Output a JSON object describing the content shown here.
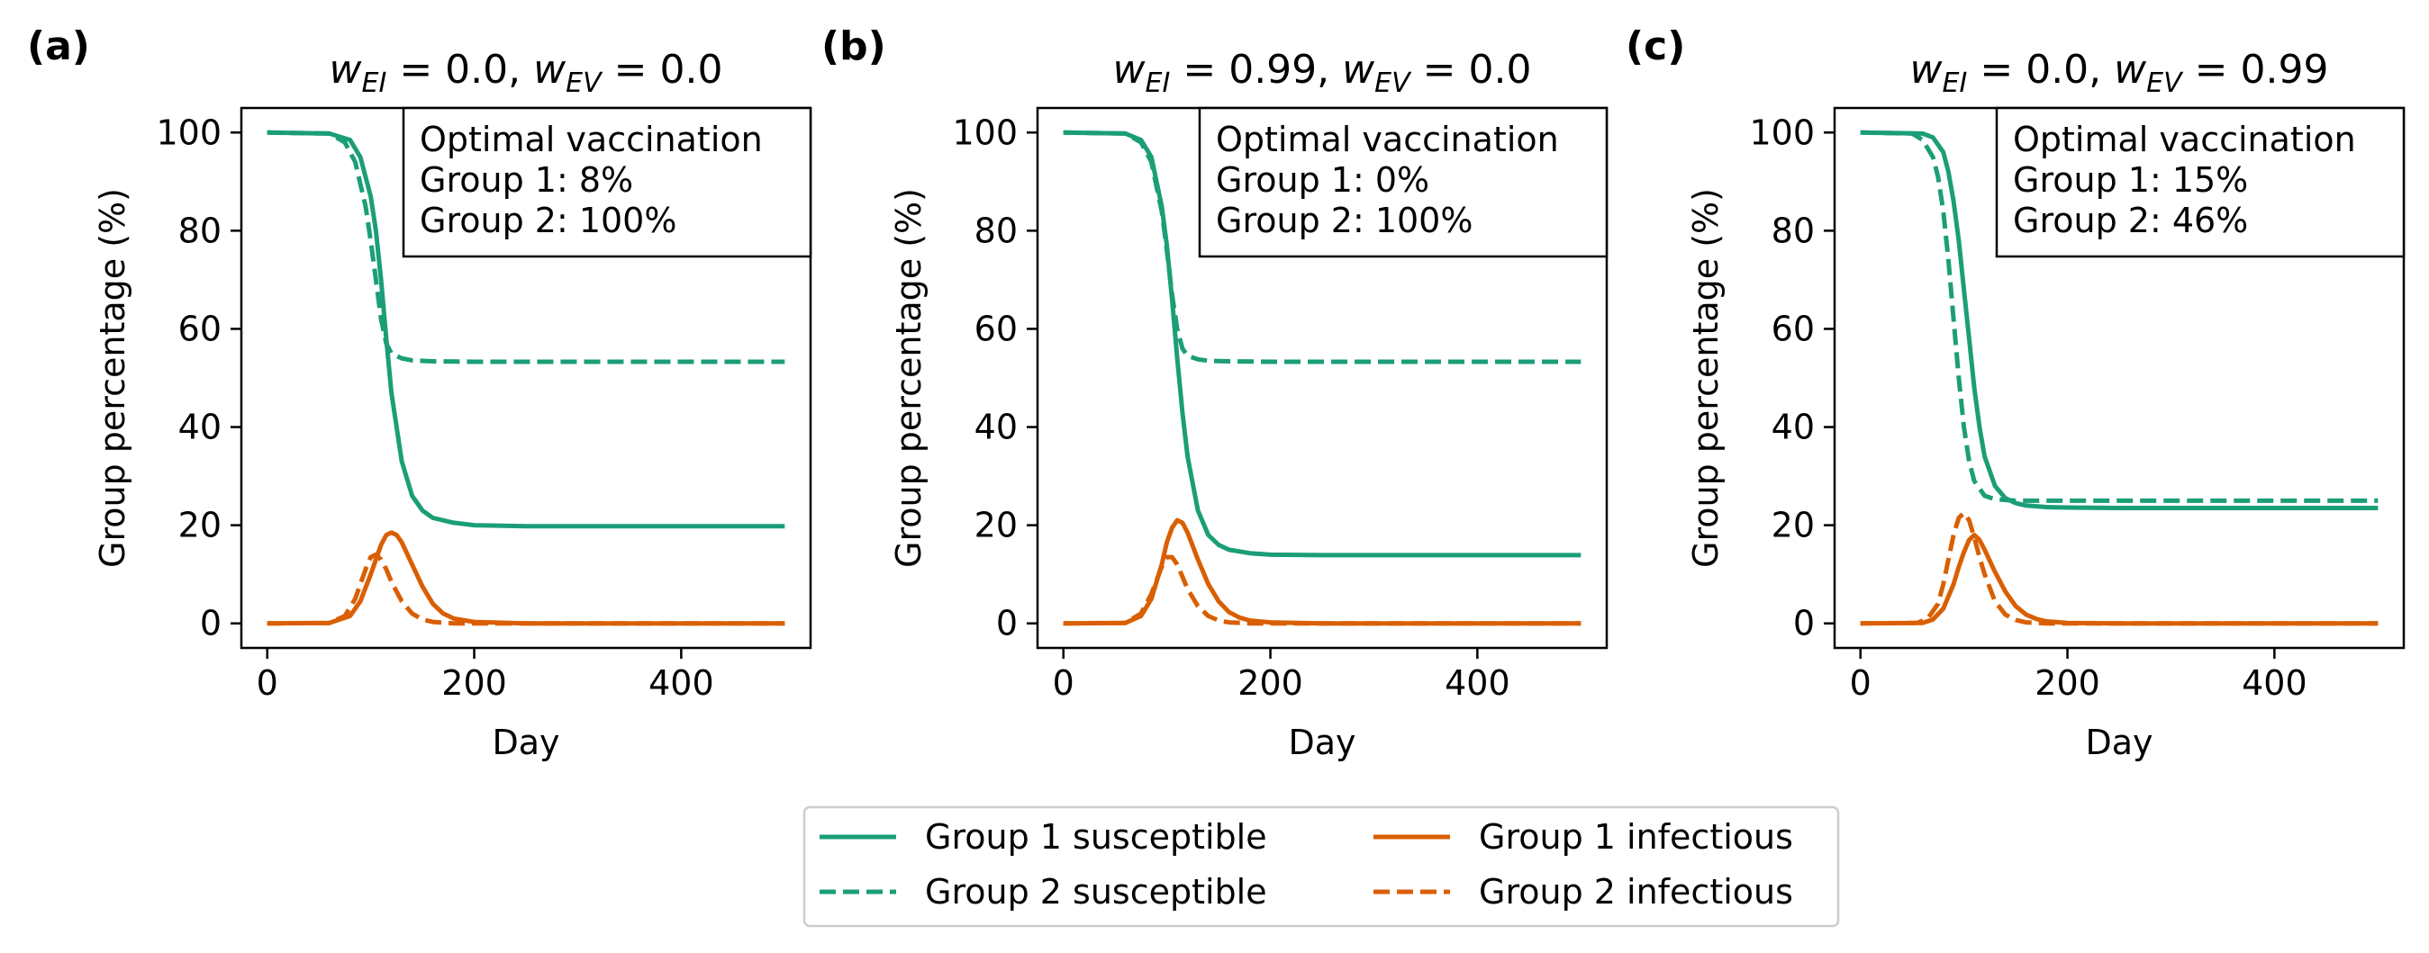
{
  "colors": {
    "susceptible": "#1b9e77",
    "infectious": "#d95f02"
  },
  "legend": {
    "entries": [
      {
        "label": "Group 1 susceptible",
        "series": "g1_susceptible"
      },
      {
        "label": "Group 2 susceptible",
        "series": "g2_susceptible"
      },
      {
        "label": "Group 1 infectious",
        "series": "g1_infectious"
      },
      {
        "label": "Group 2 infectious",
        "series": "g2_infectious"
      }
    ]
  },
  "chart_data": [
    {
      "type": "line",
      "panel_label": "(a)",
      "title": {
        "w_EI": "0.0",
        "w_EV": "0.0"
      },
      "xlabel": "Day",
      "ylabel": "Group percentage (%)",
      "xlim": [
        -25,
        525
      ],
      "ylim": [
        -5,
        105
      ],
      "xticks": [
        0,
        200,
        400
      ],
      "yticks": [
        0,
        20,
        40,
        60,
        80,
        100
      ],
      "annotation": [
        "Optimal vaccination",
        "Group 1: 8%",
        "Group 2: 100%"
      ],
      "series": [
        {
          "key": "g1_susceptible",
          "name": "Group 1 susceptible",
          "style": "solid",
          "x": [
            0,
            60,
            80,
            90,
            100,
            105,
            110,
            115,
            120,
            130,
            140,
            150,
            160,
            180,
            200,
            250,
            300,
            400,
            500
          ],
          "y": [
            100,
            99.8,
            98.5,
            95,
            87,
            80,
            70,
            58,
            47,
            33,
            26,
            23,
            21.5,
            20.5,
            20,
            19.8,
            19.8,
            19.8,
            19.8
          ]
        },
        {
          "key": "g2_susceptible",
          "name": "Group 2 susceptible",
          "style": "dashed",
          "x": [
            0,
            60,
            75,
            85,
            95,
            100,
            105,
            110,
            115,
            120,
            130,
            140,
            160,
            200,
            300,
            400,
            500
          ],
          "y": [
            100,
            99.8,
            98,
            94,
            85,
            78,
            70,
            62,
            57,
            55,
            54,
            53.6,
            53.4,
            53.3,
            53.3,
            53.3,
            53.3
          ]
        },
        {
          "key": "g1_infectious",
          "name": "Group 1 infectious",
          "style": "solid",
          "x": [
            0,
            60,
            80,
            90,
            100,
            110,
            115,
            120,
            125,
            130,
            140,
            150,
            160,
            170,
            180,
            200,
            250,
            300,
            400,
            500
          ],
          "y": [
            0,
            0.1,
            1.5,
            4.5,
            10,
            16,
            18,
            18.5,
            18,
            16.5,
            12,
            7.5,
            4,
            2,
            1,
            0.3,
            0,
            0,
            0,
            0
          ]
        },
        {
          "key": "g2_infectious",
          "name": "Group 2 infectious",
          "style": "dashed",
          "x": [
            0,
            60,
            75,
            85,
            95,
            100,
            105,
            110,
            115,
            120,
            130,
            140,
            150,
            160,
            180,
            200,
            300,
            500
          ],
          "y": [
            0,
            0.1,
            1.5,
            5,
            11,
            13.5,
            14,
            13,
            11,
            8.5,
            4.5,
            2,
            0.8,
            0.3,
            0,
            0,
            0,
            0
          ]
        }
      ]
    },
    {
      "type": "line",
      "panel_label": "(b)",
      "title": {
        "w_EI": "0.99",
        "w_EV": "0.0"
      },
      "xlabel": "Day",
      "ylabel": "Group percentage (%)",
      "xlim": [
        -25,
        525
      ],
      "ylim": [
        -5,
        105
      ],
      "xticks": [
        0,
        200,
        400
      ],
      "yticks": [
        0,
        20,
        40,
        60,
        80,
        100
      ],
      "annotation": [
        "Optimal vaccination",
        "Group 1: 0%",
        "Group 2: 100%"
      ],
      "series": [
        {
          "key": "g1_susceptible",
          "name": "Group 1 susceptible",
          "style": "solid",
          "x": [
            0,
            60,
            75,
            85,
            95,
            100,
            105,
            110,
            115,
            120,
            130,
            140,
            150,
            160,
            180,
            200,
            250,
            300,
            400,
            500
          ],
          "y": [
            100,
            99.8,
            98.5,
            95,
            85,
            77,
            66,
            54,
            43,
            34,
            23,
            18,
            16,
            15,
            14.3,
            14,
            13.9,
            13.9,
            13.9,
            13.9
          ]
        },
        {
          "key": "g2_susceptible",
          "name": "Group 2 susceptible",
          "style": "dashed",
          "x": [
            0,
            60,
            75,
            85,
            95,
            100,
            105,
            110,
            115,
            120,
            130,
            140,
            160,
            200,
            300,
            400,
            500
          ],
          "y": [
            100,
            99.8,
            98,
            94,
            84,
            76,
            67,
            60,
            56,
            54.5,
            53.8,
            53.5,
            53.4,
            53.3,
            53.3,
            53.3,
            53.3
          ]
        },
        {
          "key": "g1_infectious",
          "name": "Group 1 infectious",
          "style": "solid",
          "x": [
            0,
            60,
            75,
            85,
            95,
            100,
            105,
            110,
            115,
            120,
            130,
            140,
            150,
            160,
            170,
            180,
            200,
            250,
            300,
            400,
            500
          ],
          "y": [
            0,
            0.1,
            1.5,
            5,
            12,
            16.5,
            19.5,
            21,
            20.5,
            18.5,
            13,
            8,
            4.5,
            2.3,
            1.2,
            0.6,
            0.2,
            0,
            0,
            0,
            0
          ]
        },
        {
          "key": "g2_infectious",
          "name": "Group 2 infectious",
          "style": "dashed",
          "x": [
            0,
            60,
            75,
            85,
            95,
            100,
            105,
            110,
            115,
            120,
            130,
            140,
            150,
            160,
            180,
            200,
            300,
            500
          ],
          "y": [
            0,
            0.1,
            2,
            6,
            11.5,
            13.5,
            13.5,
            12,
            9.5,
            7,
            3.5,
            1.5,
            0.6,
            0.2,
            0,
            0,
            0,
            0
          ]
        }
      ]
    },
    {
      "type": "line",
      "panel_label": "(c)",
      "title": {
        "w_EI": "0.0",
        "w_EV": "0.99"
      },
      "xlabel": "Day",
      "ylabel": "Group percentage (%)",
      "xlim": [
        -25,
        525
      ],
      "ylim": [
        -5,
        105
      ],
      "xticks": [
        0,
        200,
        400
      ],
      "yticks": [
        0,
        20,
        40,
        60,
        80,
        100
      ],
      "annotation": [
        "Optimal vaccination",
        "Group 1: 15%",
        "Group 2: 46%"
      ],
      "series": [
        {
          "key": "g1_susceptible",
          "name": "Group 1 susceptible",
          "style": "solid",
          "x": [
            0,
            60,
            70,
            80,
            85,
            90,
            95,
            100,
            105,
            110,
            115,
            120,
            130,
            140,
            150,
            160,
            180,
            200,
            250,
            300,
            400,
            500
          ],
          "y": [
            100,
            99.8,
            99,
            96,
            92,
            86,
            78,
            68,
            58,
            48,
            40,
            34,
            28,
            25.5,
            24.5,
            24,
            23.7,
            23.6,
            23.5,
            23.5,
            23.5,
            23.5
          ]
        },
        {
          "key": "g2_susceptible",
          "name": "Group 2 susceptible",
          "style": "dashed",
          "x": [
            0,
            50,
            60,
            70,
            75,
            80,
            85,
            90,
            95,
            100,
            105,
            110,
            120,
            130,
            150,
            200,
            300,
            400,
            500
          ],
          "y": [
            100,
            99.8,
            98.5,
            95,
            91,
            84,
            74,
            62,
            50,
            40,
            33,
            29,
            26,
            25.3,
            25,
            25,
            25,
            25,
            25
          ]
        },
        {
          "key": "g1_infectious",
          "name": "Group 1 infectious",
          "style": "solid",
          "x": [
            0,
            60,
            70,
            80,
            90,
            95,
            100,
            105,
            110,
            115,
            120,
            130,
            140,
            150,
            160,
            170,
            180,
            200,
            250,
            300,
            400,
            500
          ],
          "y": [
            0,
            0.1,
            0.8,
            3,
            8,
            11.5,
            14.5,
            17,
            18,
            17,
            15,
            10.5,
            6.5,
            3.5,
            1.8,
            0.9,
            0.4,
            0.1,
            0,
            0,
            0,
            0
          ]
        },
        {
          "key": "g2_infectious",
          "name": "Group 2 infectious",
          "style": "dashed",
          "x": [
            0,
            55,
            65,
            75,
            80,
            85,
            90,
            95,
            100,
            105,
            110,
            115,
            120,
            130,
            140,
            150,
            160,
            180,
            200,
            300,
            500
          ],
          "y": [
            0,
            0.1,
            1,
            4,
            8,
            13,
            18,
            21.5,
            22.5,
            21,
            17.5,
            13.5,
            10,
            4.5,
            1.8,
            0.7,
            0.2,
            0,
            0,
            0,
            0
          ]
        }
      ]
    }
  ]
}
